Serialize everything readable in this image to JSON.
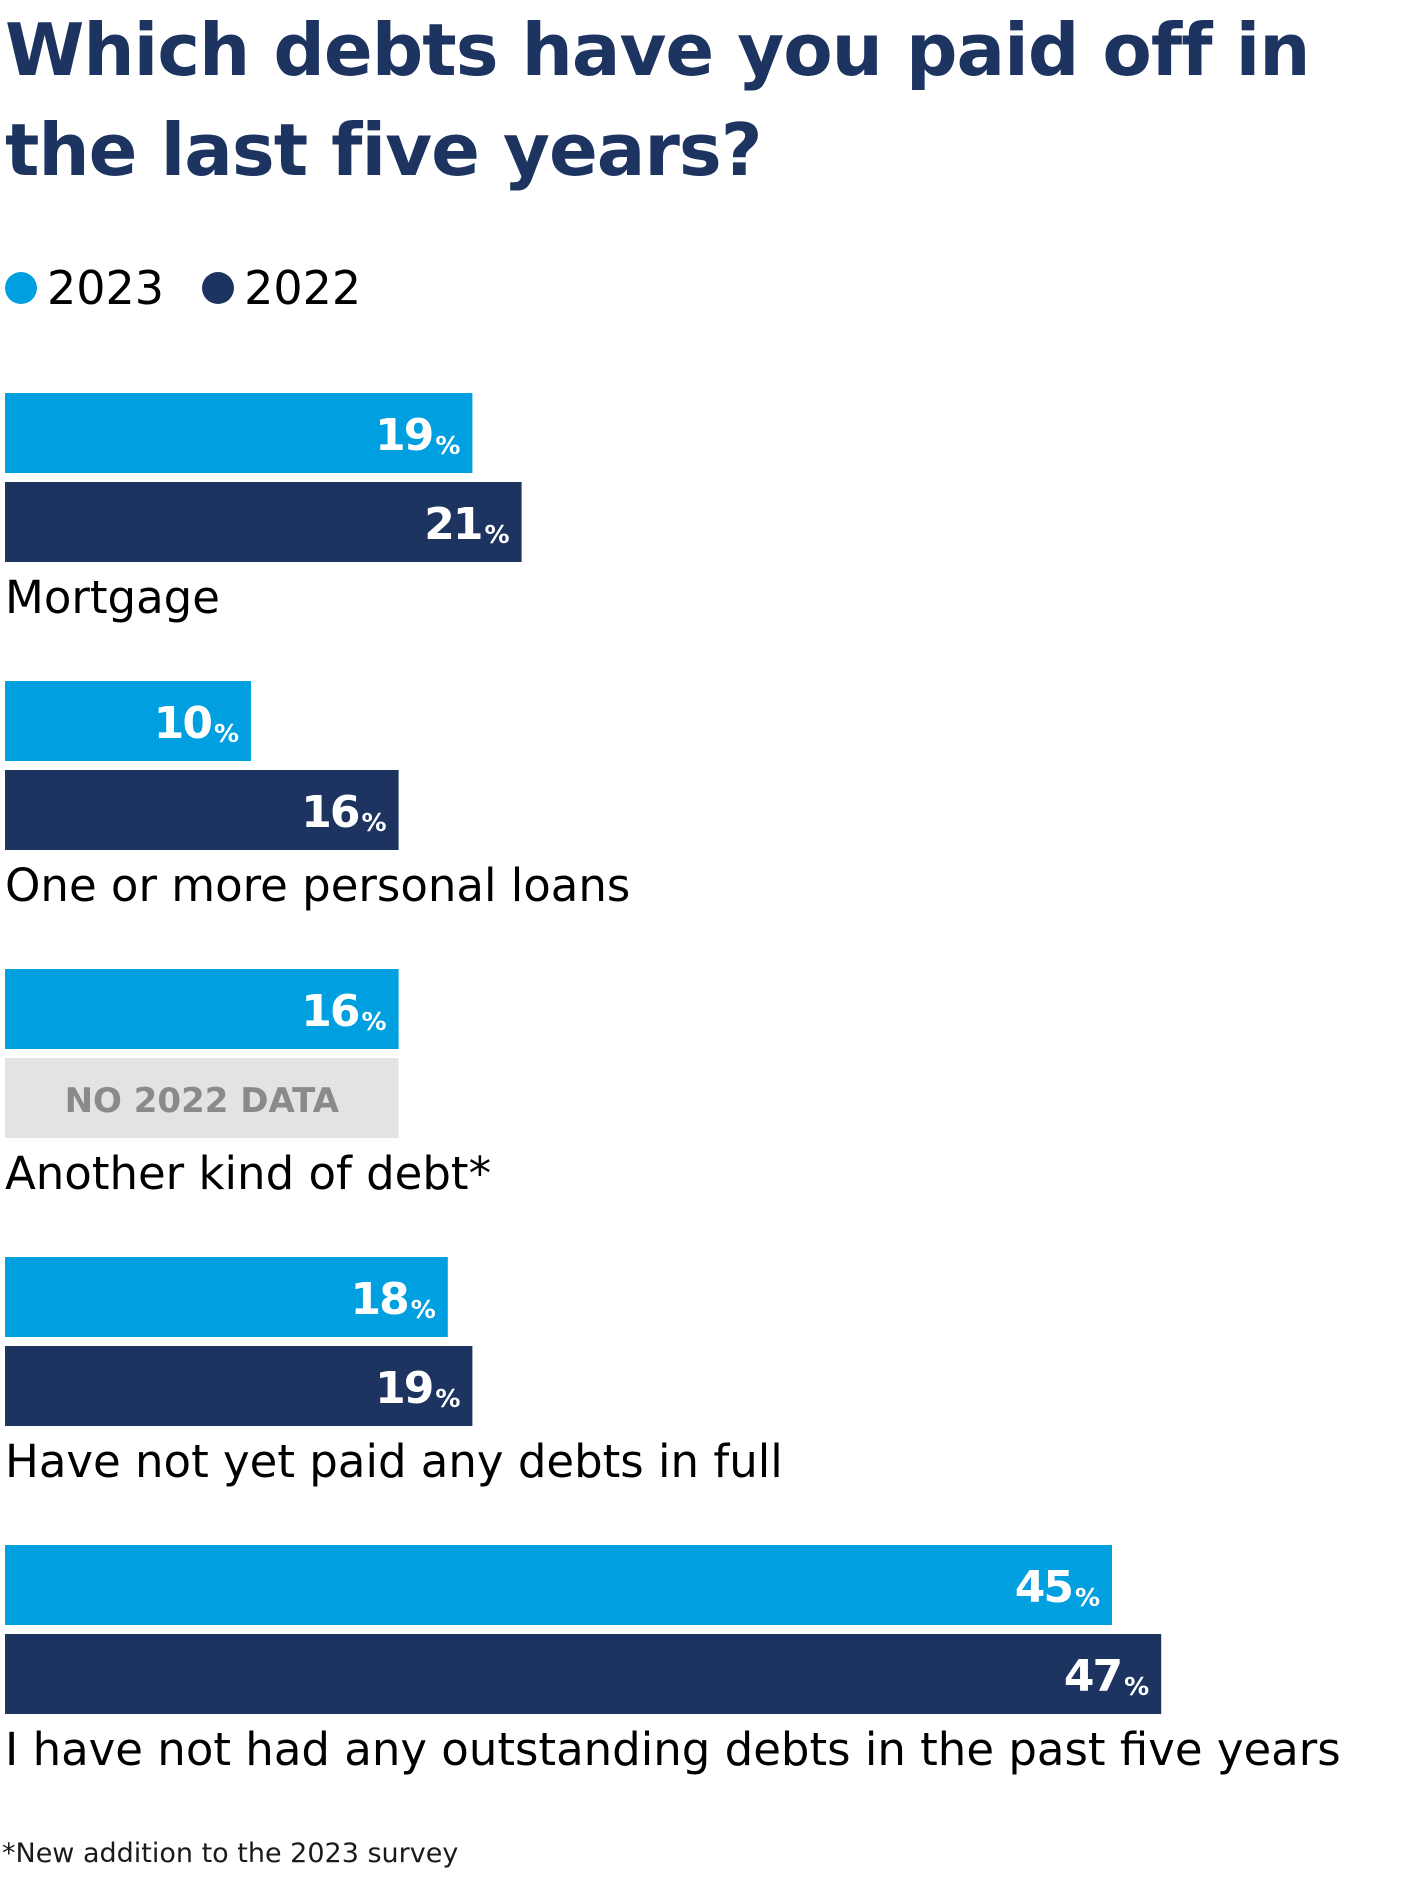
{
  "chart_data": {
    "type": "bar",
    "orientation": "horizontal",
    "title": "Which debts have you paid off in the last five years?",
    "legend": [
      {
        "name": "2023",
        "color": "#009fdf"
      },
      {
        "name": "2022",
        "color": "#1d3461"
      }
    ],
    "value_suffix": "%",
    "categories": [
      "Mortgage",
      "One or more personal loans",
      "Another kind of debt*",
      "Have not yet paid any debts in full",
      "I have not had any outstanding debts in the past five years"
    ],
    "series": [
      {
        "name": "2023",
        "values": [
          19,
          10,
          16,
          18,
          45
        ]
      },
      {
        "name": "2022",
        "values": [
          21,
          16,
          null,
          19,
          47
        ]
      }
    ],
    "no_data_label": "NO 2022 DATA",
    "no_data_color": "#e3e3e3",
    "no_data_text_color": "#8a8a8a",
    "xlim": [
      0,
      100
    ],
    "grid": false
  },
  "footnote": "*New addition to the 2023 survey"
}
